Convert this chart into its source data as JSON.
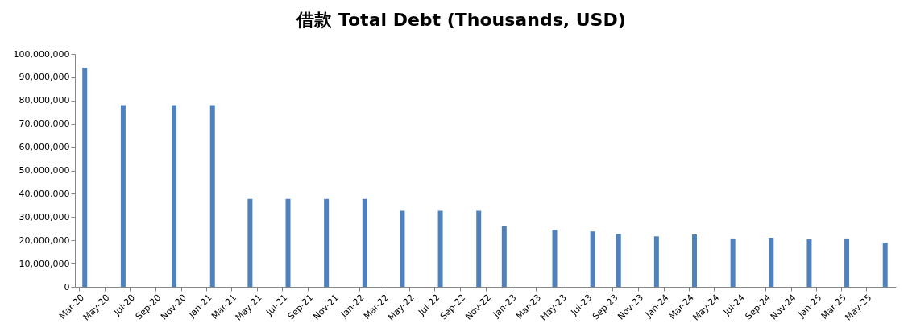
{
  "chart_data": {
    "type": "bar",
    "title": "借款 Total Debt (Thousands, USD)",
    "x": [
      "2020-03-15",
      "2020-06-15",
      "2020-10-15",
      "2021-01-15",
      "2021-04-15",
      "2021-07-15",
      "2021-10-15",
      "2022-01-15",
      "2022-04-15",
      "2022-07-15",
      "2022-10-15",
      "2022-12-15",
      "2023-04-15",
      "2023-07-15",
      "2023-09-15",
      "2023-12-15",
      "2024-03-15",
      "2024-06-15",
      "2024-09-15",
      "2024-12-15",
      "2025-03-15",
      "2025-06-15"
    ],
    "values": [
      94000000,
      78000000,
      78000000,
      78000000,
      37800000,
      37800000,
      37800000,
      37800000,
      32700000,
      32700000,
      32700000,
      26200000,
      24500000,
      23800000,
      22700000,
      21700000,
      22500000,
      20800000,
      21100000,
      20400000,
      20800000,
      19000000
    ],
    "color": "#4f81bd",
    "xlim": [
      "2020-03",
      "2025-07"
    ],
    "xticks": [
      {
        "value": "2020-03",
        "label": "Mar-20"
      },
      {
        "value": "2020-05",
        "label": "May-20"
      },
      {
        "value": "2020-07",
        "label": "Jul-20"
      },
      {
        "value": "2020-09",
        "label": "Sep-20"
      },
      {
        "value": "2020-11",
        "label": "Nov-20"
      },
      {
        "value": "2021-01",
        "label": "Jan-21"
      },
      {
        "value": "2021-03",
        "label": "Mar-21"
      },
      {
        "value": "2021-05",
        "label": "May-21"
      },
      {
        "value": "2021-07",
        "label": "Jul-21"
      },
      {
        "value": "2021-09",
        "label": "Sep-21"
      },
      {
        "value": "2021-11",
        "label": "Nov-21"
      },
      {
        "value": "2022-01",
        "label": "Jan-22"
      },
      {
        "value": "2022-03",
        "label": "Mar-22"
      },
      {
        "value": "2022-05",
        "label": "May-22"
      },
      {
        "value": "2022-07",
        "label": "Jul-22"
      },
      {
        "value": "2022-09",
        "label": "Sep-22"
      },
      {
        "value": "2022-11",
        "label": "Nov-22"
      },
      {
        "value": "2023-01",
        "label": "Jan-23"
      },
      {
        "value": "2023-03",
        "label": "Mar-23"
      },
      {
        "value": "2023-05",
        "label": "May-23"
      },
      {
        "value": "2023-07",
        "label": "Jul-23"
      },
      {
        "value": "2023-09",
        "label": "Sep-23"
      },
      {
        "value": "2023-11",
        "label": "Nov-23"
      },
      {
        "value": "2024-01",
        "label": "Jan-24"
      },
      {
        "value": "2024-03",
        "label": "Mar-24"
      },
      {
        "value": "2024-05",
        "label": "May-24"
      },
      {
        "value": "2024-07",
        "label": "Jul-24"
      },
      {
        "value": "2024-09",
        "label": "Sep-24"
      },
      {
        "value": "2024-11",
        "label": "Nov-24"
      },
      {
        "value": "2025-01",
        "label": "Jan-25"
      },
      {
        "value": "2025-03",
        "label": "Mar-25"
      },
      {
        "value": "2025-05",
        "label": "May-25"
      }
    ],
    "ylim": [
      0,
      100000000
    ],
    "yticks": [
      0,
      {
        "value": 10000000,
        "label": "10,000,000"
      },
      {
        "value": 20000000,
        "label": "20,000,000"
      },
      {
        "value": 30000000,
        "label": "30,000,000"
      },
      {
        "value": 40000000,
        "label": "40,000,000"
      },
      {
        "value": 50000000,
        "label": "50,000,000"
      },
      {
        "value": 60000000,
        "label": "60,000,000"
      },
      {
        "value": 70000000,
        "label": "70,000,000"
      },
      {
        "value": 80000000,
        "label": "80,000,000"
      },
      {
        "value": 90000000,
        "label": "90,000,000"
      },
      {
        "value": 100000000,
        "label": "100,000,000"
      }
    ],
    "grid": false
  }
}
